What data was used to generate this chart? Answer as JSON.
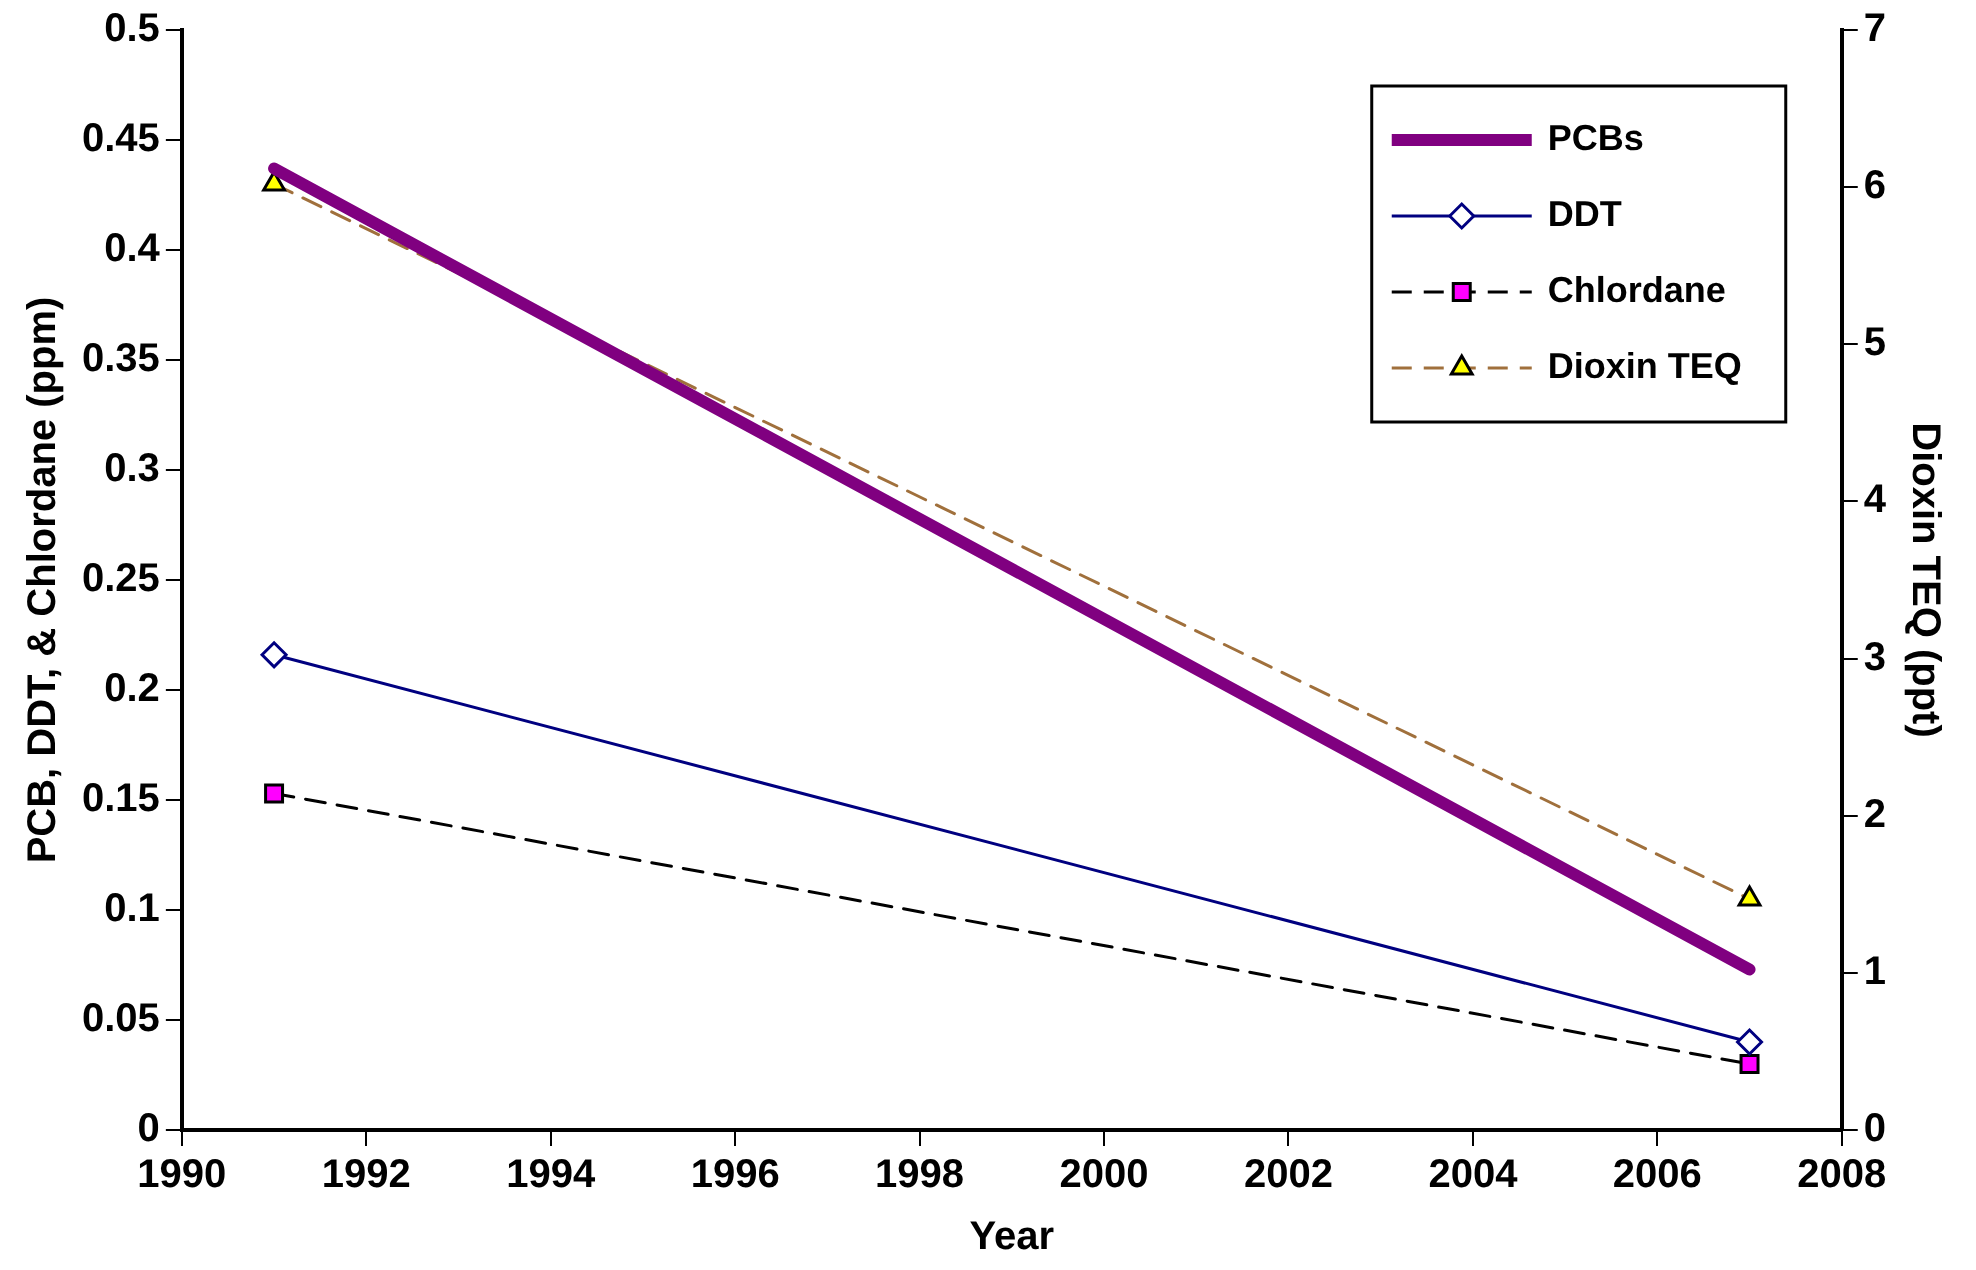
{
  "chart_data": {
    "type": "line",
    "xlabel": "Year",
    "ylabel": "PCB, DDT, & Chlordane (ppm)",
    "y2label": "Dioxin TEQ (ppt)",
    "x": [
      1991,
      2007
    ],
    "series": [
      {
        "name": "PCBs",
        "color": "#800080",
        "values": [
          0.437,
          0.073
        ],
        "marker": "none",
        "line_style": "solid"
      },
      {
        "name": "DDT",
        "color": "#000080",
        "values": [
          0.216,
          0.04
        ],
        "marker": "diamond",
        "line_style": "solid"
      },
      {
        "name": "Chlordane",
        "color": "#000000",
        "values": [
          0.153,
          0.03
        ],
        "marker": "square",
        "line_style": "dashed"
      },
      {
        "name": "Dioxin TEQ",
        "color": "#a0703c",
        "values": [
          6.02,
          1.47
        ],
        "marker": "triangle",
        "line_style": "dashed",
        "axis": "y2"
      }
    ],
    "xlim": [
      1990,
      2008
    ],
    "xticks": [
      1990,
      1992,
      1994,
      1996,
      1998,
      2000,
      2002,
      2004,
      2006,
      2008
    ],
    "ylim": [
      0,
      0.5
    ],
    "yticks": [
      0,
      0.05,
      0.1,
      0.15,
      0.2,
      0.25,
      0.3,
      0.35,
      0.4,
      0.45,
      0.5
    ],
    "y2lim": [
      0,
      7
    ],
    "y2ticks": [
      0,
      1,
      2,
      3,
      4,
      5,
      6,
      7
    ],
    "grid": false,
    "legend": "top right"
  }
}
